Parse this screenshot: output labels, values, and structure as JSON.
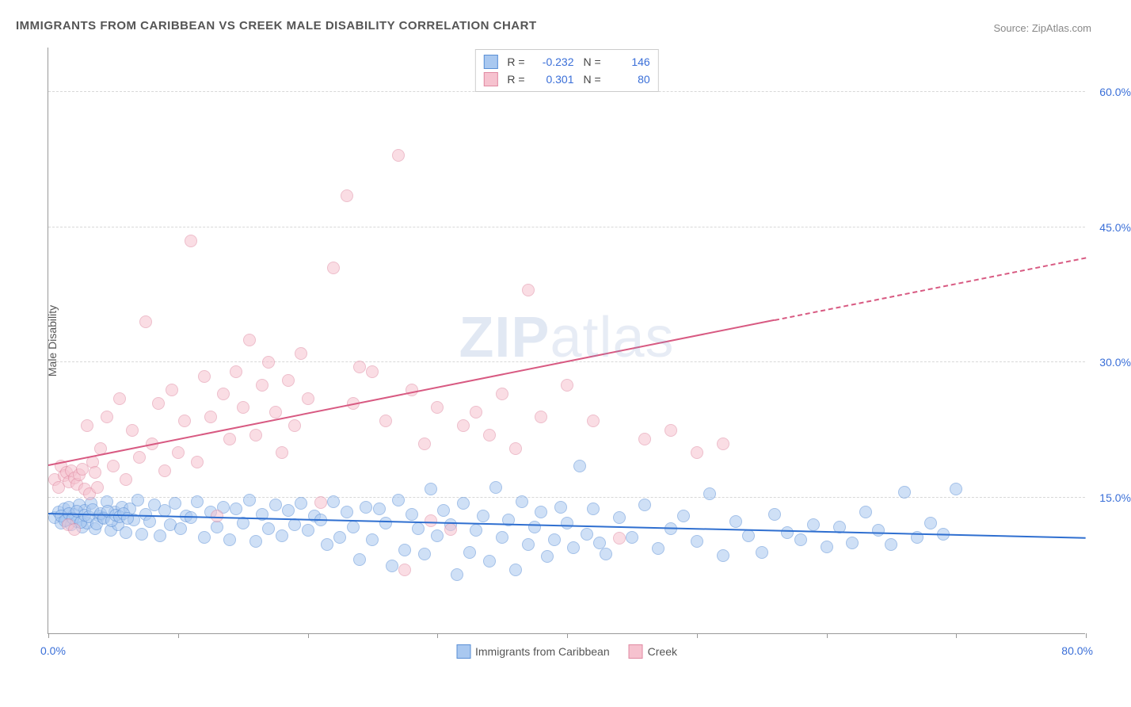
{
  "title": "IMMIGRANTS FROM CARIBBEAN VS CREEK MALE DISABILITY CORRELATION CHART",
  "source": "Source: ZipAtlas.com",
  "watermark": {
    "zip": "ZIP",
    "atlas": "atlas"
  },
  "chart": {
    "type": "scatter",
    "background_color": "#ffffff",
    "grid_color": "#d8d8d8",
    "axis_color": "#999999",
    "xlim": [
      0,
      80
    ],
    "ylim": [
      0,
      65
    ],
    "xlabel_min": "0.0%",
    "xlabel_max": "80.0%",
    "yticks": [
      {
        "v": 15,
        "label": "15.0%"
      },
      {
        "v": 30,
        "label": "30.0%"
      },
      {
        "v": 45,
        "label": "45.0%"
      },
      {
        "v": 60,
        "label": "60.0%"
      }
    ],
    "xtick_positions": [
      0,
      10,
      20,
      30,
      40,
      50,
      60,
      70,
      80
    ],
    "yaxis_title": "Male Disability",
    "tick_label_color": "#3a6fd8",
    "marker_radius": 8,
    "marker_opacity": 0.55,
    "series": [
      {
        "name": "Immigrants from Caribbean",
        "R": "-0.232",
        "N": "146",
        "fill_color": "#a9c8f0",
        "stroke_color": "#5a8fd6",
        "line_color": "#2f6fd0",
        "trend": {
          "x1": 0,
          "y1": 13.2,
          "x2": 80,
          "y2": 10.5,
          "dash_after_x": null
        },
        "points": [
          [
            0.5,
            12.8
          ],
          [
            0.8,
            13.4
          ],
          [
            1.0,
            12.2
          ],
          [
            1.2,
            13.8
          ],
          [
            1.4,
            12.6
          ],
          [
            1.6,
            14.0
          ],
          [
            1.8,
            12.0
          ],
          [
            2.0,
            13.2
          ],
          [
            2.2,
            12.4
          ],
          [
            2.4,
            14.2
          ],
          [
            2.6,
            11.8
          ],
          [
            2.8,
            13.6
          ],
          [
            3.0,
            12.2
          ],
          [
            3.3,
            14.4
          ],
          [
            3.6,
            11.6
          ],
          [
            3.9,
            13.0
          ],
          [
            4.2,
            12.8
          ],
          [
            4.5,
            14.6
          ],
          [
            4.8,
            11.4
          ],
          [
            5.1,
            13.4
          ],
          [
            5.4,
            12.0
          ],
          [
            5.7,
            14.0
          ],
          [
            6.0,
            11.2
          ],
          [
            6.3,
            13.8
          ],
          [
            6.6,
            12.6
          ],
          [
            6.9,
            14.8
          ],
          [
            7.2,
            11.0
          ],
          [
            7.5,
            13.2
          ],
          [
            7.8,
            12.4
          ],
          [
            8.2,
            14.2
          ],
          [
            8.6,
            10.8
          ],
          [
            9.0,
            13.6
          ],
          [
            9.4,
            12.0
          ],
          [
            9.8,
            14.4
          ],
          [
            10.2,
            11.6
          ],
          [
            10.6,
            13.0
          ],
          [
            11.0,
            12.8
          ],
          [
            11.5,
            14.6
          ],
          [
            12.0,
            10.6
          ],
          [
            12.5,
            13.4
          ],
          [
            13.0,
            11.8
          ],
          [
            13.5,
            14.0
          ],
          [
            14.0,
            10.4
          ],
          [
            14.5,
            13.8
          ],
          [
            15.0,
            12.2
          ],
          [
            15.5,
            14.8
          ],
          [
            16.0,
            10.2
          ],
          [
            16.5,
            13.2
          ],
          [
            17.0,
            11.6
          ],
          [
            17.5,
            14.2
          ],
          [
            18.0,
            10.8
          ],
          [
            18.5,
            13.6
          ],
          [
            19.0,
            12.0
          ],
          [
            19.5,
            14.4
          ],
          [
            20.0,
            11.4
          ],
          [
            20.5,
            13.0
          ],
          [
            21.0,
            12.6
          ],
          [
            21.5,
            9.8
          ],
          [
            22.0,
            14.6
          ],
          [
            22.5,
            10.6
          ],
          [
            23.0,
            13.4
          ],
          [
            23.5,
            11.8
          ],
          [
            24.0,
            8.2
          ],
          [
            24.5,
            14.0
          ],
          [
            25.0,
            10.4
          ],
          [
            25.5,
            13.8
          ],
          [
            26.0,
            12.2
          ],
          [
            26.5,
            7.5
          ],
          [
            27.0,
            14.8
          ],
          [
            27.5,
            9.2
          ],
          [
            28.0,
            13.2
          ],
          [
            28.5,
            11.6
          ],
          [
            29.0,
            8.8
          ],
          [
            29.5,
            16.0
          ],
          [
            30.0,
            10.8
          ],
          [
            30.5,
            13.6
          ],
          [
            31.0,
            12.0
          ],
          [
            31.5,
            6.5
          ],
          [
            32.0,
            14.4
          ],
          [
            32.5,
            9.0
          ],
          [
            33.0,
            11.4
          ],
          [
            33.5,
            13.0
          ],
          [
            34.0,
            8.0
          ],
          [
            34.5,
            16.2
          ],
          [
            35.0,
            10.6
          ],
          [
            35.5,
            12.6
          ],
          [
            36.0,
            7.0
          ],
          [
            36.5,
            14.6
          ],
          [
            37.0,
            9.8
          ],
          [
            37.5,
            11.8
          ],
          [
            38.0,
            13.4
          ],
          [
            38.5,
            8.5
          ],
          [
            39.0,
            10.4
          ],
          [
            39.5,
            14.0
          ],
          [
            40.0,
            12.2
          ],
          [
            40.5,
            9.5
          ],
          [
            41.0,
            18.5
          ],
          [
            41.5,
            11.0
          ],
          [
            42.0,
            13.8
          ],
          [
            42.5,
            10.0
          ],
          [
            43.0,
            8.8
          ],
          [
            44.0,
            12.8
          ],
          [
            45.0,
            10.6
          ],
          [
            46.0,
            14.2
          ],
          [
            47.0,
            9.4
          ],
          [
            48.0,
            11.6
          ],
          [
            49.0,
            13.0
          ],
          [
            50.0,
            10.2
          ],
          [
            51.0,
            15.5
          ],
          [
            52.0,
            8.6
          ],
          [
            53.0,
            12.4
          ],
          [
            54.0,
            10.8
          ],
          [
            55.0,
            9.0
          ],
          [
            56.0,
            13.2
          ],
          [
            57.0,
            11.2
          ],
          [
            58.0,
            10.4
          ],
          [
            59.0,
            12.0
          ],
          [
            60.0,
            9.6
          ],
          [
            61.0,
            11.8
          ],
          [
            62.0,
            10.0
          ],
          [
            63.0,
            13.4
          ],
          [
            64.0,
            11.4
          ],
          [
            65.0,
            9.8
          ],
          [
            66.0,
            15.6
          ],
          [
            67.0,
            10.6
          ],
          [
            68.0,
            12.2
          ],
          [
            69.0,
            11.0
          ],
          [
            70.0,
            16.0
          ],
          [
            1.0,
            13.0
          ],
          [
            1.3,
            12.5
          ],
          [
            1.6,
            13.3
          ],
          [
            1.9,
            12.7
          ],
          [
            2.2,
            13.5
          ],
          [
            2.5,
            12.3
          ],
          [
            2.8,
            13.1
          ],
          [
            3.1,
            12.9
          ],
          [
            3.4,
            13.7
          ],
          [
            3.7,
            12.1
          ],
          [
            4.0,
            13.3
          ],
          [
            4.3,
            12.7
          ],
          [
            4.6,
            13.5
          ],
          [
            4.9,
            12.5
          ],
          [
            5.2,
            13.1
          ],
          [
            5.5,
            12.9
          ],
          [
            5.8,
            13.3
          ],
          [
            6.1,
            12.7
          ]
        ]
      },
      {
        "name": "Creek",
        "R": "0.301",
        "N": "80",
        "fill_color": "#f6c2cf",
        "stroke_color": "#e08aa2",
        "line_color": "#d85a82",
        "trend": {
          "x1": 0,
          "y1": 18.5,
          "x2": 80,
          "y2": 41.5,
          "dash_after_x": 56
        },
        "points": [
          [
            0.5,
            17.0
          ],
          [
            0.8,
            16.2
          ],
          [
            1.0,
            18.5
          ],
          [
            1.2,
            17.5
          ],
          [
            1.4,
            17.8
          ],
          [
            1.6,
            16.8
          ],
          [
            1.8,
            18.0
          ],
          [
            2.0,
            17.2
          ],
          [
            2.2,
            16.5
          ],
          [
            2.4,
            17.6
          ],
          [
            2.6,
            18.2
          ],
          [
            2.8,
            16.0
          ],
          [
            3.0,
            23.0
          ],
          [
            3.2,
            15.5
          ],
          [
            3.4,
            19.0
          ],
          [
            3.6,
            17.8
          ],
          [
            3.8,
            16.2
          ],
          [
            4.0,
            20.5
          ],
          [
            4.5,
            24.0
          ],
          [
            5.0,
            18.5
          ],
          [
            5.5,
            26.0
          ],
          [
            6.0,
            17.0
          ],
          [
            6.5,
            22.5
          ],
          [
            7.0,
            19.5
          ],
          [
            7.5,
            34.5
          ],
          [
            8.0,
            21.0
          ],
          [
            8.5,
            25.5
          ],
          [
            9.0,
            18.0
          ],
          [
            9.5,
            27.0
          ],
          [
            10.0,
            20.0
          ],
          [
            10.5,
            23.5
          ],
          [
            11.0,
            43.5
          ],
          [
            11.5,
            19.0
          ],
          [
            12.0,
            28.5
          ],
          [
            12.5,
            24.0
          ],
          [
            13.0,
            13.0
          ],
          [
            13.5,
            26.5
          ],
          [
            14.0,
            21.5
          ],
          [
            14.5,
            29.0
          ],
          [
            15.0,
            25.0
          ],
          [
            15.5,
            32.5
          ],
          [
            16.0,
            22.0
          ],
          [
            16.5,
            27.5
          ],
          [
            17.0,
            30.0
          ],
          [
            17.5,
            24.5
          ],
          [
            18.0,
            20.0
          ],
          [
            18.5,
            28.0
          ],
          [
            19.0,
            23.0
          ],
          [
            19.5,
            31.0
          ],
          [
            20.0,
            26.0
          ],
          [
            21.0,
            14.5
          ],
          [
            22.0,
            40.5
          ],
          [
            23.0,
            48.5
          ],
          [
            23.5,
            25.5
          ],
          [
            24.0,
            29.5
          ],
          [
            25.0,
            29.0
          ],
          [
            26.0,
            23.5
          ],
          [
            27.0,
            53.0
          ],
          [
            27.5,
            7.0
          ],
          [
            28.0,
            27.0
          ],
          [
            29.0,
            21.0
          ],
          [
            29.5,
            12.5
          ],
          [
            30.0,
            25.0
          ],
          [
            31.0,
            11.5
          ],
          [
            32.0,
            23.0
          ],
          [
            33.0,
            24.5
          ],
          [
            34.0,
            22.0
          ],
          [
            35.0,
            26.5
          ],
          [
            36.0,
            20.5
          ],
          [
            37.0,
            38.0
          ],
          [
            38.0,
            24.0
          ],
          [
            40.0,
            27.5
          ],
          [
            42.0,
            23.5
          ],
          [
            44.0,
            10.5
          ],
          [
            46.0,
            21.5
          ],
          [
            48.0,
            22.5
          ],
          [
            50.0,
            20.0
          ],
          [
            52.0,
            21.0
          ],
          [
            1.5,
            12.0
          ],
          [
            2.0,
            11.5
          ]
        ]
      }
    ],
    "legend_top": {
      "R_label": "R =",
      "N_label": "N ="
    },
    "legend_bottom_labels": [
      "Immigrants from Caribbean",
      "Creek"
    ]
  }
}
